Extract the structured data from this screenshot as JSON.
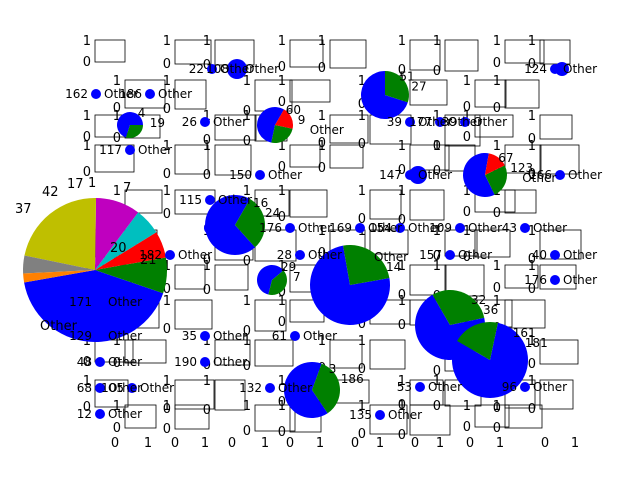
{
  "chart_data": {
    "type": "pie",
    "title": "",
    "colors": {
      "blue": "#0000ff",
      "green": "#008000",
      "red": "#ff0000",
      "cyan": "#00bfbf",
      "magenta": "#bf00bf",
      "olive": "#bfbf00",
      "grey": "#808080",
      "orange": "#ff8000",
      "axis": "#000000",
      "background": "#ffffff"
    },
    "main_pie": {
      "categories": [
        "Other",
        "37",
        "42",
        "17",
        "7",
        "1",
        "20",
        "21"
      ],
      "values": [
        42,
        8,
        6,
        6,
        10,
        22,
        4,
        2
      ]
    },
    "pies": [
      {
        "labels": [
          "51",
          "27"
        ],
        "values": [
          70,
          30
        ]
      },
      {
        "labels": [
          "60",
          "9",
          "Other"
        ],
        "values": [
          55,
          25,
          20
        ]
      },
      {
        "labels": [
          "67",
          "123",
          "Other"
        ],
        "values": [
          60,
          25,
          15
        ]
      },
      {
        "labels": [
          "4",
          "19"
        ],
        "values": [
          70,
          30
        ]
      },
      {
        "labels": [
          "29",
          "7"
        ],
        "values": [
          60,
          40
        ]
      },
      {
        "labels": [
          "Other",
          "14"
        ],
        "values": [
          75,
          25
        ]
      },
      {
        "labels": [
          "32",
          "36"
        ],
        "values": [
          70,
          30
        ]
      },
      {
        "labels": [
          "3",
          "186"
        ],
        "values": [
          65,
          35
        ]
      },
      {
        "labels": [
          "161",
          "181"
        ],
        "values": [
          80,
          20
        ]
      },
      {
        "labels": [
          "16",
          "24"
        ],
        "values": [
          70,
          30
        ]
      }
    ],
    "tiny_axes_ticks": [
      "0",
      "1"
    ],
    "labels": [
      "162",
      "186",
      "51",
      "22",
      "108",
      "124",
      "Other",
      "177",
      "39",
      "147",
      "171",
      "129",
      "48",
      "68",
      "12",
      "105",
      "190",
      "173",
      "181",
      "161",
      "96",
      "53",
      "135",
      "132",
      "186",
      "61",
      "157",
      "176",
      "109",
      "40",
      "43",
      "46",
      "166",
      "115",
      "87",
      "26",
      "150",
      "3",
      "35",
      "28",
      "7",
      "29",
      "113",
      "117",
      "79",
      "169",
      "154",
      "159",
      "182",
      "42",
      "16",
      "27",
      "21",
      "20"
    ]
  }
}
